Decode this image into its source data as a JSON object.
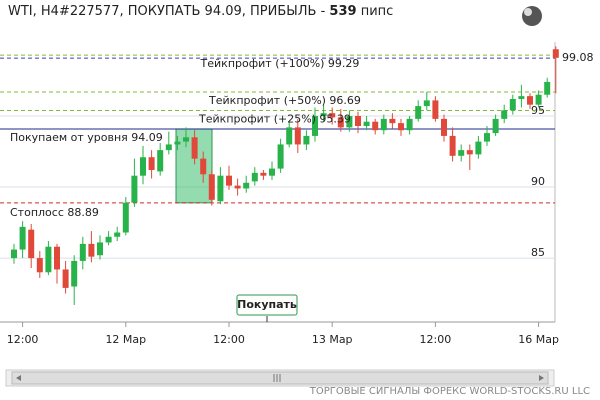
{
  "title": "WTI, H4#227577, ПОКУПАТЬ 94.09, ПРИБЫЛЬ -",
  "profit_pips": 539,
  "profit_unit": "пипс",
  "footer": "ТОРГОВЫЕ СИГНАЛЫ ФОРЕКС WORLD-STOCKS.RU LLC",
  "chart_data": {
    "type": "candlestick",
    "categories": [
      null,
      "12:00",
      null,
      null,
      null,
      null,
      null,
      null,
      null,
      null,
      null,
      null,
      null,
      "12 Мар",
      null,
      null,
      null,
      null,
      null,
      null,
      null,
      null,
      null,
      null,
      null,
      "12:00",
      null,
      null,
      null,
      null,
      null,
      null,
      null,
      null,
      null,
      null,
      null,
      "13 Мар",
      null,
      null,
      null,
      null,
      null,
      null,
      null,
      null,
      null,
      null,
      null,
      "12:00",
      null,
      null,
      null,
      null,
      null,
      null,
      null,
      null,
      null,
      null,
      null,
      "16 Мар",
      null,
      null
    ],
    "open": [
      85.0,
      85.6,
      87.0,
      85.0,
      84.0,
      85.8,
      84.2,
      83.0,
      84.8,
      86.0,
      85.2,
      86.1,
      86.5,
      86.8,
      88.9,
      90.8,
      92.1,
      91.1,
      92.6,
      93.0,
      93.2,
      93.5,
      92.0,
      90.9,
      89.0,
      90.8,
      90.1,
      89.9,
      90.4,
      91.0,
      90.8,
      91.3,
      93.0,
      94.2,
      93.0,
      93.6,
      95.0,
      95.2,
      94.9,
      94.2,
      95.0,
      94.3,
      94.6,
      94.0,
      94.8,
      94.5,
      94.0,
      94.8,
      95.7,
      96.1,
      94.8,
      93.6,
      92.2,
      92.6,
      92.3,
      93.2,
      93.8,
      94.8,
      95.4,
      96.2,
      96.4,
      95.8,
      96.5,
      99.7
    ],
    "high": [
      86.0,
      87.6,
      87.4,
      85.5,
      86.2,
      86.0,
      84.8,
      85.2,
      86.5,
      86.9,
      86.6,
      86.9,
      87.2,
      89.3,
      92.0,
      92.9,
      92.6,
      93.1,
      93.9,
      93.6,
      94.2,
      94.0,
      92.5,
      91.2,
      91.4,
      91.5,
      90.6,
      90.8,
      91.4,
      91.2,
      91.8,
      93.4,
      94.6,
      94.8,
      94.0,
      95.6,
      95.8,
      95.6,
      95.5,
      95.4,
      95.3,
      95.0,
      94.8,
      95.1,
      95.2,
      94.8,
      95.0,
      96.1,
      96.7,
      96.4,
      95.1,
      94.2,
      93.0,
      93.0,
      93.6,
      94.3,
      95.1,
      95.8,
      96.5,
      97.2,
      96.6,
      96.8,
      97.7,
      99.9
    ],
    "low": [
      84.6,
      85.0,
      84.3,
      83.6,
      83.8,
      83.2,
      82.5,
      81.7,
      84.2,
      84.7,
      84.9,
      85.9,
      86.2,
      86.6,
      88.6,
      90.2,
      90.6,
      90.8,
      92.3,
      92.6,
      92.8,
      91.6,
      90.3,
      88.7,
      88.8,
      89.8,
      89.4,
      89.6,
      90.1,
      90.5,
      90.5,
      91.0,
      92.8,
      92.4,
      92.6,
      93.2,
      94.6,
      94.4,
      93.9,
      93.9,
      93.8,
      94.0,
      93.7,
      93.7,
      94.1,
      93.6,
      93.7,
      94.6,
      95.4,
      94.6,
      93.2,
      91.8,
      91.8,
      91.2,
      92.0,
      92.9,
      93.6,
      94.5,
      95.1,
      95.6,
      95.5,
      95.6,
      96.3,
      96.6
    ],
    "close": [
      85.6,
      87.2,
      85.0,
      84.0,
      85.8,
      84.2,
      82.9,
      84.8,
      86.0,
      85.1,
      86.1,
      86.5,
      86.8,
      88.9,
      90.8,
      92.1,
      91.2,
      92.6,
      93.0,
      93.2,
      93.5,
      92.0,
      90.9,
      89.1,
      90.8,
      90.1,
      89.9,
      90.3,
      91.0,
      90.8,
      91.3,
      93.0,
      94.2,
      93.0,
      93.6,
      95.0,
      95.2,
      94.9,
      94.2,
      95.0,
      94.3,
      94.6,
      94.0,
      94.8,
      94.5,
      94.0,
      94.8,
      95.7,
      96.1,
      94.8,
      93.6,
      92.2,
      92.6,
      92.3,
      93.2,
      93.8,
      94.8,
      95.4,
      96.2,
      96.4,
      95.8,
      96.5,
      97.4,
      99.1
    ],
    "up_color": "#27b34a",
    "down_color": "#e0483a",
    "ylim": [
      80.5,
      100
    ],
    "yticks": [
      85,
      90,
      95
    ],
    "last_price": 99.08,
    "last_price_color": "#3344aa",
    "levels": [
      {
        "label": "Тейкпрофит (+100%) 99.29",
        "value": 99.29,
        "color": "#8ab832",
        "style": "dashed"
      },
      {
        "label": "Тейкпрофит (+50%) 96.69",
        "value": 96.69,
        "color": "#8ab832",
        "style": "dashed"
      },
      {
        "label": "Тейкпрофит (+25%) 95.39",
        "value": 95.39,
        "color": "#8ab832",
        "style": "dashed"
      },
      {
        "label": "Покупаем от уровня 94.09",
        "value": 94.09,
        "color": "#1f2a8c",
        "style": "solid"
      },
      {
        "label": "Стоплосс 88.89",
        "value": 88.89,
        "color": "#d42a2a",
        "style": "dashed"
      }
    ],
    "signal_label": "Покупать"
  }
}
